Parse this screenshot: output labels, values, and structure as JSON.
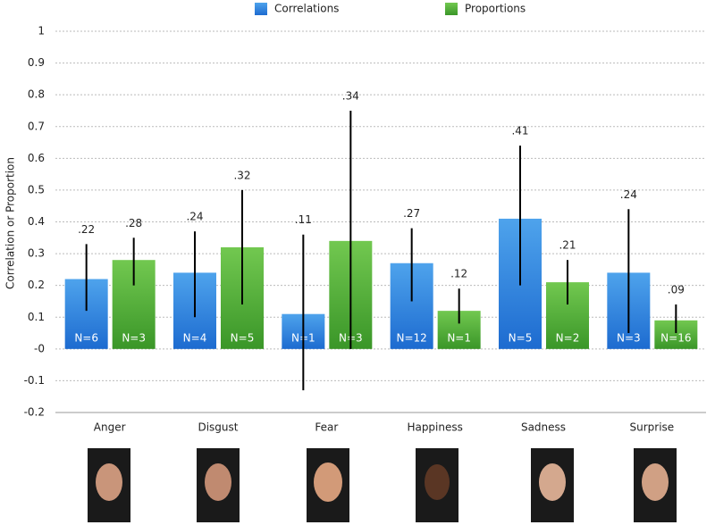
{
  "chart_data": {
    "type": "bar",
    "y_label": "Correlation or Proportion",
    "categories": [
      "Anger",
      "Disgust",
      "Fear",
      "Happiness",
      "Sadness",
      "Surprise"
    ],
    "series": [
      {
        "name": "Correlations",
        "color": "#2b7fdc",
        "values": [
          0.22,
          0.24,
          0.11,
          0.27,
          0.41,
          0.24
        ],
        "value_labels": [
          ".22",
          ".24",
          ".11",
          ".27",
          ".41",
          ".24"
        ],
        "lower": [
          0.12,
          0.1,
          -0.13,
          0.15,
          0.2,
          0.05
        ],
        "upper": [
          0.33,
          0.37,
          0.36,
          0.38,
          0.64,
          0.44
        ],
        "n_labels": [
          "N=6",
          "N=4",
          "N=1",
          "N=12",
          "N=5",
          "N=3"
        ]
      },
      {
        "name": "Proportions",
        "color": "#4caf34",
        "values": [
          0.28,
          0.32,
          0.34,
          0.12,
          0.21,
          0.09
        ],
        "value_labels": [
          ".28",
          ".32",
          ".34",
          ".12",
          ".21",
          ".09"
        ],
        "lower": [
          0.2,
          0.14,
          0.0,
          0.08,
          0.14,
          0.05
        ],
        "upper": [
          0.35,
          0.5,
          0.75,
          0.19,
          0.28,
          0.14
        ],
        "n_labels": [
          "N=3",
          "N=5",
          "N=3",
          "N=1",
          "N=2",
          "N=16"
        ]
      }
    ],
    "ylim": [
      -0.2,
      1
    ],
    "yticks": [
      -0.2,
      -0.1,
      {
        "value": 0,
        "label": "-0"
      },
      0.1,
      0.2,
      0.3,
      0.4,
      0.5,
      0.6,
      0.7,
      0.8,
      0.9,
      1
    ],
    "grid": true,
    "legend": "top"
  }
}
